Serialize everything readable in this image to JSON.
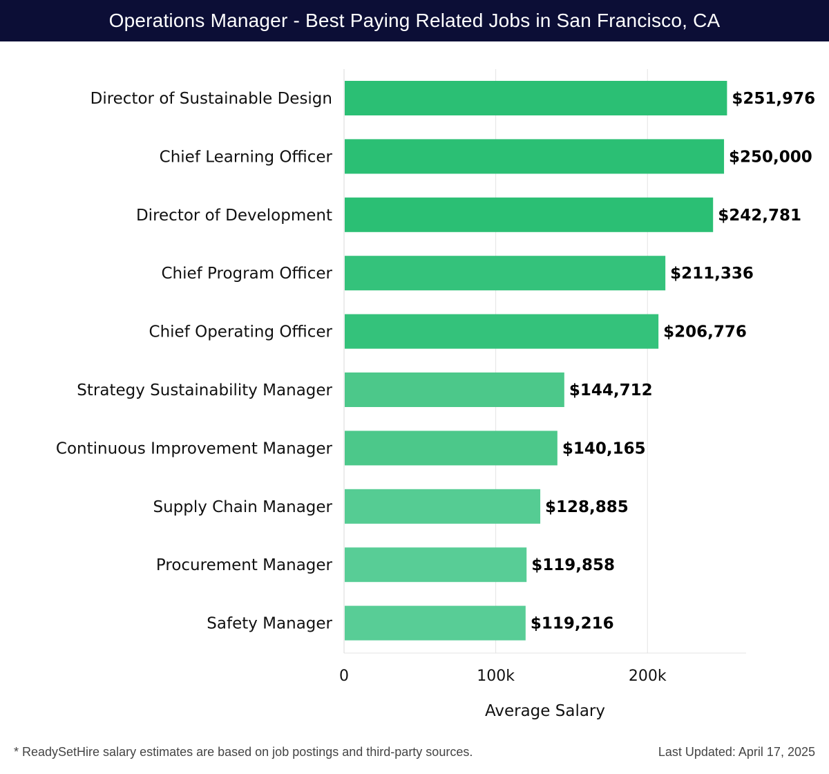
{
  "header": {
    "title": "Operations Manager - Best Paying Related Jobs in San Francisco, CA"
  },
  "chart_data": {
    "type": "bar",
    "orientation": "horizontal",
    "categories": [
      "Director of Sustainable Design",
      "Chief Learning Officer",
      "Director of Development",
      "Chief Program Officer",
      "Chief Operating Officer",
      "Strategy Sustainability Manager",
      "Continuous Improvement Manager",
      "Supply Chain Manager",
      "Procurement Manager",
      "Safety Manager"
    ],
    "values": [
      251976,
      250000,
      242781,
      211336,
      206776,
      144712,
      140165,
      128885,
      119858,
      119216
    ],
    "value_labels": [
      "$251,976",
      "$250,000",
      "$242,781",
      "$211,336",
      "$206,776",
      "$144,712",
      "$140,165",
      "$128,885",
      "$119,858",
      "$119,216"
    ],
    "bar_colors": [
      "#2bbf74",
      "#2bbf74",
      "#2bbf74",
      "#34c27b",
      "#34c27b",
      "#4cc88a",
      "#4cc88a",
      "#55cc93",
      "#58cd96",
      "#58cd96"
    ],
    "xlabel": "Average Salary",
    "xlim": [
      0,
      265000
    ],
    "xticks": [
      0,
      100000,
      200000
    ],
    "xtick_labels": [
      "0",
      "100k",
      "200k"
    ],
    "grid": true
  },
  "footer": {
    "note": "* ReadySetHire salary estimates are based on job postings and third-party sources.",
    "updated": "Last Updated: April 17, 2025"
  }
}
